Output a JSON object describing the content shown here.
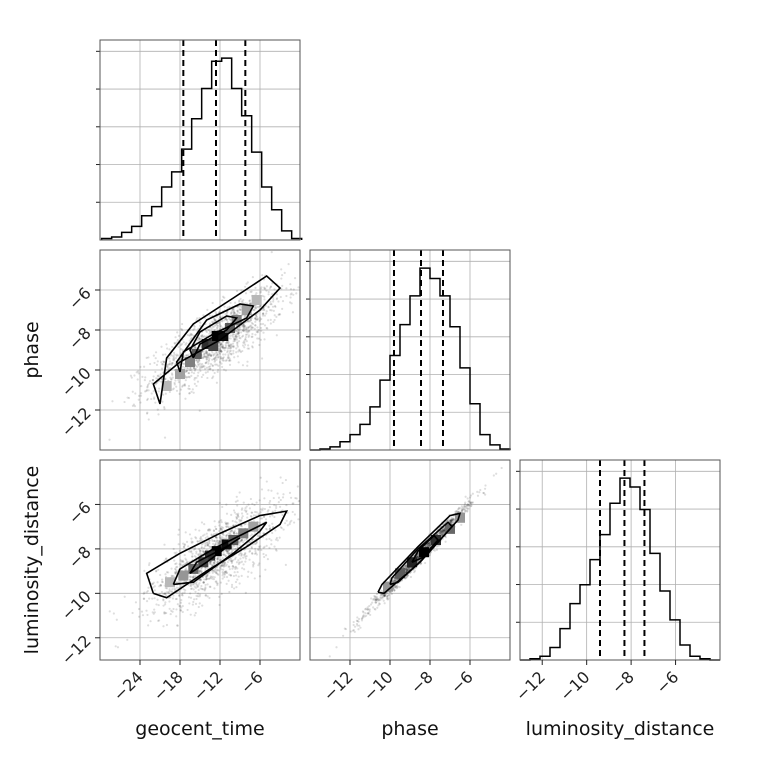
{
  "chart_data": {
    "type": "corner",
    "title": "",
    "parameters": [
      "geocent_time",
      "phase",
      "luminosity_distance"
    ],
    "ranges": {
      "geocent_time": [
        -30,
        0
      ],
      "phase": [
        -14,
        -4
      ],
      "luminosity_distance": [
        -13,
        -4
      ]
    },
    "ticks": {
      "geocent_time": [
        -24,
        -18,
        -12,
        -6
      ],
      "phase": [
        -12,
        -10,
        -8,
        -6
      ],
      "luminosity_distance": [
        -12,
        -10,
        -8,
        -6
      ]
    },
    "tick_labels": {
      "geocent_time": [
        "−24",
        "−18",
        "−12",
        "−6"
      ],
      "phase": [
        "−12",
        "−10",
        "−8",
        "−6"
      ],
      "luminosity_distance": [
        "−12",
        "−10",
        "−8",
        "−6"
      ]
    },
    "quantiles": {
      "geocent_time": [
        -17.5,
        -12.6,
        -8.2
      ],
      "phase": [
        -9.8,
        -8.45,
        -7.35
      ],
      "luminosity_distance": [
        -9.4,
        -8.3,
        -7.4
      ]
    },
    "histograms": {
      "geocent_time": {
        "x": [
          -29,
          -27.5,
          -26,
          -24.5,
          -23,
          -21.5,
          -20,
          -18.5,
          -17,
          -15.5,
          -14,
          -12.5,
          -11,
          -9.5,
          -8,
          -6.5,
          -5,
          -3.5,
          -2,
          -0.5
        ],
        "values": [
          1,
          2,
          5,
          9,
          16,
          22,
          35,
          45,
          60,
          80,
          100,
          118,
          120,
          100,
          82,
          58,
          35,
          20,
          6,
          1
        ]
      },
      "phase": {
        "x": [
          -13.75,
          -13.25,
          -12.75,
          -12.25,
          -11.75,
          -11.25,
          -10.75,
          -10.25,
          -9.75,
          -9.25,
          -8.75,
          -8.25,
          -7.75,
          -7.25,
          -6.75,
          -6.25,
          -5.75,
          -5.25,
          -4.75,
          -4.25
        ],
        "values": [
          0,
          1,
          3,
          8,
          15,
          25,
          42,
          68,
          92,
          122,
          150,
          177,
          167,
          150,
          120,
          80,
          45,
          15,
          5,
          1
        ]
      },
      "luminosity_distance": {
        "x": [
          -12.775,
          -12.325,
          -11.875,
          -11.425,
          -10.975,
          -10.525,
          -10.075,
          -9.625,
          -9.175,
          -8.725,
          -8.275,
          -7.825,
          -7.375,
          -6.925,
          -6.475,
          -6.025,
          -5.575,
          -5.125,
          -4.675,
          -4.225
        ],
        "values": [
          0,
          1,
          3,
          10,
          25,
          45,
          60,
          80,
          100,
          125,
          145,
          138,
          120,
          85,
          55,
          32,
          12,
          3,
          1,
          0
        ]
      }
    },
    "pairs": [
      {
        "x": "geocent_time",
        "y": "phase",
        "mean": [
          -12.5,
          -8.5
        ],
        "std": [
          5,
          1.3
        ],
        "correlation": 0.8,
        "n_samples": 1400,
        "contours": [
          [
            [
              -21,
              -11.7
            ],
            [
              -22,
              -10.7
            ],
            [
              -18,
              -9.6
            ],
            [
              -12,
              -8.5
            ],
            [
              -6,
              -7.0
            ],
            [
              -3,
              -5.9
            ],
            [
              -5,
              -5.3
            ],
            [
              -10,
              -6.4
            ],
            [
              -16,
              -7.7
            ],
            [
              -20,
              -9.4
            ],
            [
              -21,
              -11.7
            ]
          ],
          [
            [
              -18,
              -10.1
            ],
            [
              -17.5,
              -9.1
            ],
            [
              -13,
              -8.2
            ],
            [
              -8,
              -7.4
            ],
            [
              -7,
              -6.8
            ],
            [
              -9,
              -6.7
            ],
            [
              -14,
              -7.5
            ],
            [
              -18.5,
              -9.6
            ],
            [
              -18,
              -10.1
            ]
          ],
          [
            [
              -16,
              -9.4
            ],
            [
              -15,
              -8.7
            ],
            [
              -11,
              -8.0
            ],
            [
              -9.5,
              -7.4
            ],
            [
              -11,
              -7.3
            ],
            [
              -15,
              -8.1
            ],
            [
              -16.5,
              -9.0
            ],
            [
              -16,
              -9.4
            ]
          ]
        ],
        "density_cells": [
          {
            "x": -12.5,
            "y": -8.3,
            "v": 1
          },
          {
            "x": -11.5,
            "y": -8.3,
            "v": 0.95
          },
          {
            "x": -14,
            "y": -8.7,
            "v": 0.8
          },
          {
            "x": -13,
            "y": -8.8,
            "v": 0.7
          },
          {
            "x": -15.5,
            "y": -9.2,
            "v": 0.6
          },
          {
            "x": -10.5,
            "y": -7.9,
            "v": 0.6
          },
          {
            "x": -16.5,
            "y": -9.6,
            "v": 0.45
          },
          {
            "x": -9.5,
            "y": -7.5,
            "v": 0.45
          },
          {
            "x": -18,
            "y": -10.2,
            "v": 0.3
          },
          {
            "x": -20,
            "y": -10.8,
            "v": 0.2
          },
          {
            "x": -8,
            "y": -7.0,
            "v": 0.3
          },
          {
            "x": -6.5,
            "y": -6.5,
            "v": 0.2
          }
        ]
      },
      {
        "x": "geocent_time",
        "y": "luminosity_distance",
        "mean": [
          -12.5,
          -8.3
        ],
        "std": [
          5,
          1.2
        ],
        "correlation": 0.75,
        "n_samples": 1400,
        "contours": [
          [
            [
              -22,
              -10.0
            ],
            [
              -23,
              -9.1
            ],
            [
              -18,
              -8.2
            ],
            [
              -12,
              -7.3
            ],
            [
              -6,
              -6.5
            ],
            [
              -2,
              -6.3
            ],
            [
              -3,
              -6.9
            ],
            [
              -8,
              -7.9
            ],
            [
              -14,
              -9.0
            ],
            [
              -20,
              -10.2
            ],
            [
              -22,
              -10.0
            ]
          ],
          [
            [
              -19,
              -9.6
            ],
            [
              -18,
              -8.9
            ],
            [
              -13,
              -8.0
            ],
            [
              -7,
              -7.1
            ],
            [
              -5,
              -6.8
            ],
            [
              -6,
              -7.2
            ],
            [
              -10,
              -8.2
            ],
            [
              -16,
              -9.5
            ],
            [
              -19,
              -9.6
            ]
          ],
          [
            [
              -16.5,
              -9.1
            ],
            [
              -15.5,
              -8.6
            ],
            [
              -11,
              -7.9
            ],
            [
              -9,
              -7.5
            ],
            [
              -10,
              -7.7
            ],
            [
              -14,
              -8.6
            ],
            [
              -16.5,
              -9.1
            ]
          ]
        ],
        "density_cells": [
          {
            "x": -12.5,
            "y": -8.1,
            "v": 1
          },
          {
            "x": -11,
            "y": -7.8,
            "v": 0.95
          },
          {
            "x": -13.5,
            "y": -8.3,
            "v": 0.8
          },
          {
            "x": -14.5,
            "y": -8.6,
            "v": 0.7
          },
          {
            "x": -10,
            "y": -7.6,
            "v": 0.6
          },
          {
            "x": -16,
            "y": -8.9,
            "v": 0.55
          },
          {
            "x": -8.5,
            "y": -7.3,
            "v": 0.45
          },
          {
            "x": -17.5,
            "y": -9.2,
            "v": 0.35
          },
          {
            "x": -7,
            "y": -7.0,
            "v": 0.3
          },
          {
            "x": -19.5,
            "y": -9.5,
            "v": 0.2
          }
        ]
      },
      {
        "x": "phase",
        "y": "luminosity_distance",
        "mean": [
          -8.5,
          -8.3
        ],
        "std": [
          1.25,
          1.2
        ],
        "correlation": 0.99,
        "n_samples": 1400,
        "contours": [
          [
            [
              -10.6,
              -9.95
            ],
            [
              -10.3,
              -10.0
            ],
            [
              -8.5,
              -8.6
            ],
            [
              -6.6,
              -6.7
            ],
            [
              -6.5,
              -6.4
            ],
            [
              -7.0,
              -6.5
            ],
            [
              -8.6,
              -7.9
            ],
            [
              -10.4,
              -9.6
            ],
            [
              -10.6,
              -9.95
            ]
          ],
          [
            [
              -10.0,
              -9.6
            ],
            [
              -9.6,
              -9.5
            ],
            [
              -8.4,
              -8.5
            ],
            [
              -6.9,
              -7.0
            ],
            [
              -7.1,
              -6.8
            ],
            [
              -8.6,
              -8.0
            ],
            [
              -9.9,
              -9.3
            ],
            [
              -10.0,
              -9.6
            ]
          ],
          [
            [
              -8.9,
              -8.6
            ],
            [
              -8.4,
              -8.4
            ],
            [
              -7.6,
              -7.6
            ],
            [
              -7.8,
              -7.4
            ],
            [
              -8.6,
              -8.1
            ],
            [
              -8.9,
              -8.6
            ]
          ]
        ],
        "density_cells": [
          {
            "x": -8.3,
            "y": -8.15,
            "v": 1
          },
          {
            "x": -8.9,
            "y": -8.6,
            "v": 0.85
          },
          {
            "x": -7.7,
            "y": -7.6,
            "v": 0.8
          },
          {
            "x": -9.5,
            "y": -9.1,
            "v": 0.6
          },
          {
            "x": -7.0,
            "y": -7.1,
            "v": 0.55
          },
          {
            "x": -10.1,
            "y": -9.7,
            "v": 0.35
          },
          {
            "x": -6.5,
            "y": -6.6,
            "v": 0.35
          }
        ]
      }
    ],
    "grid": true
  }
}
